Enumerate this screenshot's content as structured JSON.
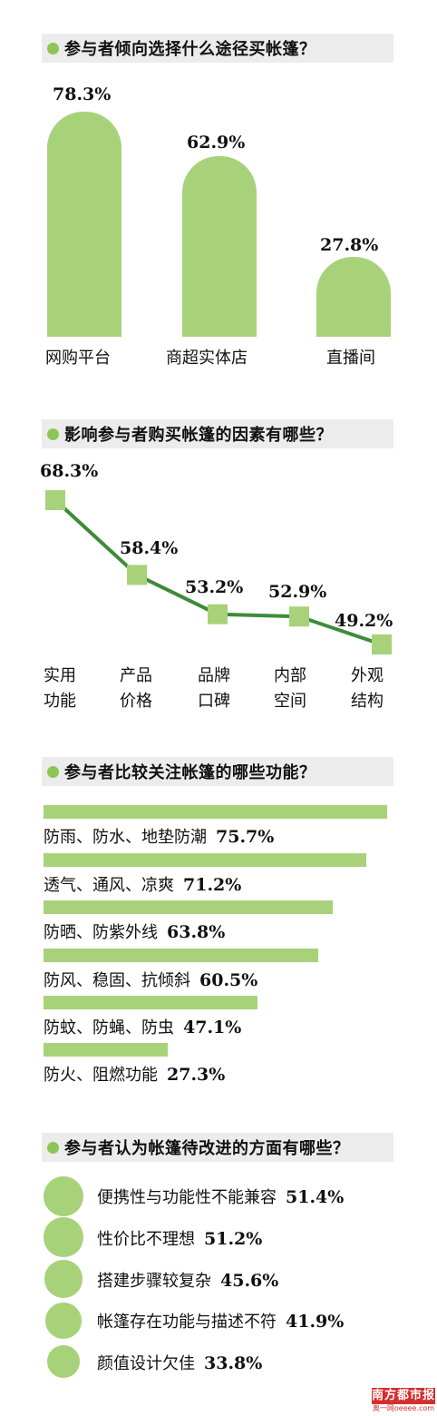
{
  "sections": [
    {
      "title": "参与者倾向选择什么途径买帐篷？"
    },
    {
      "title": "影响参与者购买帐篷的因素有哪些？"
    },
    {
      "title": "参与者比较关注帐篷的哪些功能？"
    },
    {
      "title": "参与者认为帐篷待改进的方面有哪些？"
    }
  ],
  "chart_data": [
    {
      "type": "bar",
      "title": "参与者倾向选择什么途径买帐篷？",
      "categories": [
        "网购平台",
        "商超实体店",
        "直播间"
      ],
      "values": [
        78.3,
        62.9,
        27.8
      ],
      "value_labels": [
        "78.3%",
        "62.9%",
        "27.8%"
      ],
      "unit": "%",
      "color": "#a7d279"
    },
    {
      "type": "line",
      "title": "影响参与者购买帐篷的因素有哪些？",
      "categories": [
        [
          "实用",
          "功能"
        ],
        [
          "产品",
          "价格"
        ],
        [
          "品牌",
          "口碑"
        ],
        [
          "内部",
          "空间"
        ],
        [
          "外观",
          "结构"
        ]
      ],
      "values": [
        68.3,
        58.4,
        53.2,
        52.9,
        49.2
      ],
      "value_labels": [
        "68.3%",
        "58.4%",
        "53.2%",
        "52.9%",
        "49.2%"
      ],
      "unit": "%",
      "line_color": "#3d8b3a",
      "marker_color": "#a7d279"
    },
    {
      "type": "bar",
      "orientation": "horizontal",
      "title": "参与者比较关注帐篷的哪些功能？",
      "categories": [
        "防雨、防水、地垫防潮",
        "透气、通风、凉爽",
        "防晒、防紫外线",
        "防风、稳固、抗倾斜",
        "防蚊、防蝇、防虫",
        "防火、阻燃功能"
      ],
      "values": [
        75.7,
        71.2,
        63.8,
        60.5,
        47.1,
        27.3
      ],
      "value_labels": [
        "75.7%",
        "71.2%",
        "63.8%",
        "60.5%",
        "47.1%",
        "27.3%"
      ],
      "unit": "%",
      "color": "#a7d279"
    },
    {
      "type": "bubble",
      "title": "参与者认为帐篷待改进的方面有哪些？",
      "categories": [
        "便携性与功能性不能兼容",
        "性价比不理想",
        "搭建步骤较复杂",
        "帐篷存在功能与描述不符",
        "颜值设计欠佳"
      ],
      "values": [
        51.4,
        51.2,
        45.6,
        41.9,
        33.8
      ],
      "value_labels": [
        "51.4%",
        "51.2%",
        "45.6%",
        "41.9%",
        "33.8%"
      ],
      "unit": "%",
      "color": "#a7d279"
    }
  ],
  "logo": {
    "name": "南方都市报",
    "sub": "奥一网oeeee.com"
  }
}
